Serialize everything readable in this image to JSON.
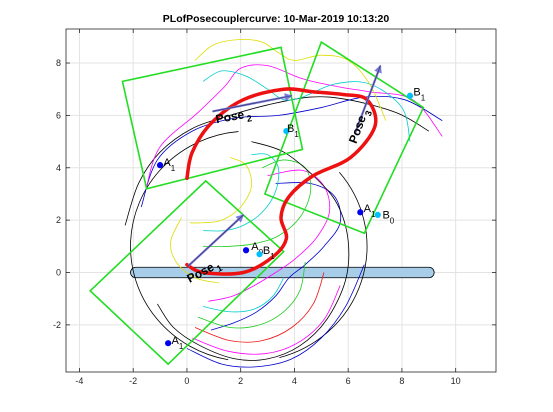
{
  "chart_data": {
    "type": "line",
    "title": "PLofPosecouplercurve: 10-Mar-2019 10:13:20",
    "xlabel": "",
    "ylabel": "",
    "xlim": [
      -4.5,
      11.5
    ],
    "ylim": [
      -3.8,
      9.3
    ],
    "x_ticks": [
      -4,
      -2,
      0,
      2,
      4,
      6,
      8,
      10
    ],
    "y_ticks": [
      -2,
      0,
      2,
      4,
      6,
      8
    ],
    "grid": true,
    "colors": {
      "rect": "#22dd22",
      "coupler": "#ee1111",
      "ground": "#a8cde8",
      "point": "#0000ee",
      "point_light": "#00bfff",
      "arrow": "#7a78d8"
    },
    "ground_link": {
      "x": [
        -2.1,
        9.2
      ],
      "y": 0,
      "thickness": 0.4
    },
    "rectangles": [
      {
        "name": "pose-1-rect",
        "points": [
          [
            -3.6,
            -0.7
          ],
          [
            0.7,
            3.5
          ],
          [
            3.6,
            0.8
          ],
          [
            -0.7,
            -3.5
          ]
        ]
      },
      {
        "name": "pose-2-rect",
        "points": [
          [
            -2.4,
            7.3
          ],
          [
            3.5,
            8.6
          ],
          [
            4.3,
            4.7
          ],
          [
            -1.5,
            3.2
          ]
        ]
      },
      {
        "name": "pose-3-rect",
        "points": [
          [
            5.0,
            8.8
          ],
          [
            8.8,
            6.3
          ],
          [
            6.6,
            1.5
          ],
          [
            2.9,
            3.0
          ]
        ]
      }
    ],
    "coupler_curve": [
      [
        0.0,
        3.6
      ],
      [
        0.2,
        4.6
      ],
      [
        0.9,
        5.7
      ],
      [
        2.1,
        6.6
      ],
      [
        3.6,
        7.0
      ],
      [
        4.7,
        6.9
      ],
      [
        5.8,
        6.8
      ],
      [
        6.7,
        6.6
      ],
      [
        7.0,
        5.6
      ],
      [
        6.1,
        4.4
      ],
      [
        4.7,
        3.7
      ],
      [
        3.8,
        2.9
      ],
      [
        3.5,
        2.1
      ],
      [
        3.7,
        1.3
      ],
      [
        3.2,
        0.6
      ],
      [
        2.1,
        0.0
      ],
      [
        0.6,
        0.0
      ],
      [
        0.0,
        0.3
      ]
    ],
    "coupler_curves_thin": [
      {
        "color": "#000000",
        "points": [
          [
            -2.3,
            1.8
          ],
          [
            -1.8,
            3.4
          ],
          [
            -1.0,
            4.6
          ],
          [
            0.2,
            5.5
          ],
          [
            1.6,
            6.0
          ],
          [
            3.0,
            6.4
          ],
          [
            4.6,
            6.7
          ],
          [
            6.0,
            6.6
          ],
          [
            7.8,
            6.1
          ],
          [
            9.0,
            5.4
          ]
        ]
      },
      {
        "color": "#0000cc",
        "points": [
          [
            -1.7,
            2.5
          ],
          [
            -1.1,
            4.3
          ],
          [
            0.2,
            5.4
          ],
          [
            1.8,
            5.9
          ],
          [
            3.4,
            6.0
          ],
          [
            5.0,
            6.3
          ],
          [
            6.6,
            6.7
          ],
          [
            8.1,
            6.6
          ],
          [
            9.5,
            5.8
          ]
        ]
      },
      {
        "color": "#ff00ff",
        "points": [
          [
            -1.5,
            3.3
          ],
          [
            -1.0,
            4.8
          ],
          [
            0.4,
            6.1
          ],
          [
            1.4,
            7.1
          ],
          [
            2.0,
            7.8
          ],
          [
            3.0,
            7.9
          ],
          [
            4.3,
            7.4
          ],
          [
            5.6,
            7.1
          ],
          [
            6.8,
            6.9
          ],
          [
            8.4,
            6.6
          ],
          [
            9.5,
            5.2
          ]
        ]
      },
      {
        "color": "#00cccc",
        "points": [
          [
            0.6,
            7.3
          ],
          [
            1.3,
            7.7
          ],
          [
            2.2,
            7.5
          ],
          [
            3.0,
            7.0
          ],
          [
            3.6,
            6.6
          ],
          [
            4.3,
            6.7
          ],
          [
            5.5,
            7.2
          ],
          [
            6.8,
            7.2
          ],
          [
            8.0,
            6.3
          ],
          [
            8.3,
            5.0
          ]
        ]
      },
      {
        "color": "#dddd00",
        "points": [
          [
            0.3,
            8.1
          ],
          [
            1.0,
            8.7
          ],
          [
            2.0,
            8.9
          ],
          [
            2.8,
            8.8
          ],
          [
            3.4,
            8.4
          ],
          [
            4.0,
            8.1
          ],
          [
            5.0,
            8.3
          ],
          [
            6.0,
            8.1
          ],
          [
            6.8,
            7.2
          ],
          [
            7.4,
            5.8
          ]
        ]
      },
      {
        "color": "#0000cc",
        "points": [
          [
            3.3,
            3.4
          ],
          [
            4.6,
            3.4
          ],
          [
            5.5,
            2.9
          ],
          [
            5.7,
            1.9
          ],
          [
            5.1,
            1.0
          ],
          [
            4.4,
            0.3
          ],
          [
            3.8,
            -0.2
          ],
          [
            3.3,
            -0.9
          ],
          [
            2.6,
            -1.5
          ],
          [
            1.8,
            -1.9
          ],
          [
            0.9,
            -2.2
          ]
        ]
      },
      {
        "color": "#ff00ff",
        "points": [
          [
            3.0,
            3.7
          ],
          [
            4.3,
            3.9
          ],
          [
            5.1,
            3.3
          ],
          [
            5.3,
            2.3
          ],
          [
            4.8,
            1.3
          ],
          [
            4.0,
            0.5
          ],
          [
            3.3,
            0.0
          ],
          [
            2.5,
            -0.5
          ],
          [
            1.7,
            -0.9
          ],
          [
            0.8,
            -1.1
          ]
        ]
      },
      {
        "color": "#22cc22",
        "points": [
          [
            2.8,
            4.0
          ],
          [
            3.6,
            4.3
          ],
          [
            4.4,
            4.0
          ],
          [
            4.6,
            3.1
          ],
          [
            4.2,
            2.1
          ],
          [
            3.4,
            1.4
          ],
          [
            2.5,
            1.1
          ],
          [
            1.6,
            1.0
          ],
          [
            0.6,
            1.0
          ]
        ]
      },
      {
        "color": "#00cccc",
        "points": [
          [
            2.4,
            4.5
          ],
          [
            3.0,
            4.5
          ],
          [
            3.4,
            4.0
          ],
          [
            3.3,
            3.1
          ],
          [
            2.8,
            2.3
          ],
          [
            2.1,
            1.8
          ],
          [
            1.4,
            1.6
          ],
          [
            0.6,
            1.6
          ]
        ]
      },
      {
        "color": "#dddd00",
        "points": [
          [
            1.6,
            4.4
          ],
          [
            2.2,
            4.1
          ],
          [
            2.4,
            3.3
          ],
          [
            2.0,
            2.5
          ],
          [
            1.3,
            2.0
          ],
          [
            0.6,
            1.9
          ],
          [
            0.1,
            1.9
          ]
        ]
      },
      {
        "color": "#000000",
        "points": [
          [
            -1.1,
            -1.2
          ],
          [
            -0.5,
            -2.1
          ],
          [
            0.5,
            -2.8
          ],
          [
            1.8,
            -3.3
          ],
          [
            3.0,
            -3.3
          ],
          [
            4.2,
            -2.8
          ],
          [
            5.2,
            -1.8
          ],
          [
            5.9,
            -0.3
          ],
          [
            6.0,
            1.2
          ],
          [
            5.6,
            2.6
          ],
          [
            4.8,
            3.6
          ],
          [
            3.6,
            4.6
          ],
          [
            2.4,
            5.0
          ]
        ]
      },
      {
        "color": "#0000cc",
        "points": [
          [
            0.0,
            -2.9
          ],
          [
            1.3,
            -3.5
          ],
          [
            2.6,
            -3.6
          ],
          [
            3.9,
            -3.3
          ],
          [
            5.0,
            -2.5
          ],
          [
            5.9,
            -1.3
          ],
          [
            6.6,
            0.3
          ]
        ]
      },
      {
        "color": "#ff00ff",
        "points": [
          [
            0.2,
            -2.5
          ],
          [
            1.5,
            -3.0
          ],
          [
            2.9,
            -3.1
          ],
          [
            4.1,
            -2.7
          ],
          [
            5.1,
            -1.8
          ],
          [
            5.7,
            -0.5
          ]
        ]
      },
      {
        "color": "#ee1111",
        "points": [
          [
            0.3,
            -2.1
          ],
          [
            1.6,
            -2.6
          ],
          [
            2.8,
            -2.6
          ],
          [
            3.9,
            -2.1
          ],
          [
            4.7,
            -1.2
          ],
          [
            5.1,
            0.0
          ]
        ]
      },
      {
        "color": "#22cc22",
        "points": [
          [
            0.4,
            -1.7
          ],
          [
            1.6,
            -2.1
          ],
          [
            2.7,
            -2.0
          ],
          [
            3.6,
            -1.5
          ],
          [
            4.2,
            -0.7
          ],
          [
            4.4,
            0.4
          ]
        ]
      },
      {
        "color": "#00cccc",
        "points": [
          [
            0.6,
            -1.3
          ],
          [
            1.6,
            -1.5
          ],
          [
            2.5,
            -1.4
          ],
          [
            3.2,
            -0.9
          ],
          [
            3.6,
            -0.2
          ]
        ]
      },
      {
        "color": "#dddd00",
        "points": [
          [
            -0.2,
            2.1
          ],
          [
            -0.6,
            1.2
          ],
          [
            -0.4,
            0.4
          ],
          [
            0.3,
            -0.2
          ],
          [
            1.2,
            -0.4
          ]
        ]
      }
    ],
    "circle_arcs": [
      {
        "color": "#000000",
        "cx": 2.3,
        "cy": 1.0,
        "r": 4.4,
        "start_deg": 95,
        "end_deg": 260
      },
      {
        "color": "#000000",
        "cx": 2.3,
        "cy": 1.0,
        "r": 4.4,
        "start_deg": -75,
        "end_deg": 40
      }
    ],
    "poses": [
      {
        "name": "Pose",
        "sub": "1",
        "x": 0.05,
        "y": 0.25,
        "arrow_to": [
          2.1,
          2.2
        ],
        "label_x": 0.1,
        "label_y": -0.4,
        "label_rot": -28
      },
      {
        "name": "Pose",
        "sub": "2",
        "x": 0.95,
        "y": 6.15,
        "arrow_to": [
          3.9,
          6.75
        ],
        "label_x": 1.1,
        "label_y": 5.7,
        "label_rot": -10
      },
      {
        "name": "Pose",
        "sub": "3",
        "x": 6.25,
        "y": 5.3,
        "arrow_to": [
          7.2,
          7.9
        ],
        "label_x": 6.3,
        "label_y": 4.9,
        "label_rot": -70
      }
    ],
    "points": [
      {
        "name": "A",
        "sub": "1",
        "x": -1.0,
        "y": 4.1,
        "color": "#0000ee",
        "dx": 0.05,
        "dy": 0.0
      },
      {
        "name": "A",
        "sub": "1",
        "x": -0.7,
        "y": -2.7,
        "color": "#0000ee",
        "dx": 0.05,
        "dy": 0.0
      },
      {
        "name": "A",
        "sub": "1",
        "x": 6.45,
        "y": 2.3,
        "color": "#0000ee",
        "dx": 0.05,
        "dy": 0.05
      },
      {
        "name": "A",
        "sub": "0",
        "x": 2.2,
        "y": 0.85,
        "color": "#0000ee",
        "dx": 0.12,
        "dy": 0.05
      },
      {
        "name": "B",
        "sub": "1",
        "x": 3.7,
        "y": 5.4,
        "color": "#00bfff",
        "dx": -0.05,
        "dy": 0.0
      },
      {
        "name": "B",
        "sub": "1",
        "x": 8.3,
        "y": 6.75,
        "color": "#00bfff",
        "dx": 0.05,
        "dy": 0.05
      },
      {
        "name": "B",
        "sub": "0",
        "x": 7.1,
        "y": 2.2,
        "color": "#00bfff",
        "dx": 0.1,
        "dy": -0.1
      },
      {
        "name": "B",
        "sub": "1",
        "x": 2.7,
        "y": 0.7,
        "color": "#00bfff",
        "dx": 0.05,
        "dy": 0.05
      }
    ]
  }
}
